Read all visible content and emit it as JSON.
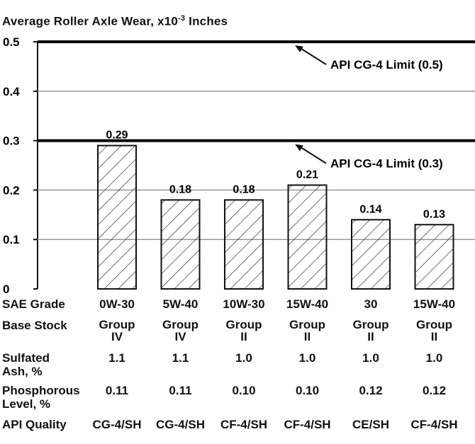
{
  "chart_data": {
    "type": "bar",
    "title": "Average Roller Axle Wear, x10",
    "title_exponent": "-3",
    "title_unit": "Inches",
    "ylim": [
      0,
      0.5
    ],
    "yticks": [
      "0",
      "0.1",
      "0.2",
      "0.3",
      "0.4",
      "0.5"
    ],
    "categories": [
      "0W-30",
      "5W-40",
      "10W-30",
      "15W-40",
      "30",
      "15W-40"
    ],
    "values": [
      0.29,
      0.18,
      0.18,
      0.21,
      0.14,
      0.13
    ],
    "data_labels": [
      "0.29",
      "0.18",
      "0.18",
      "0.21",
      "0.14",
      "0.13"
    ],
    "annotations": [
      {
        "text": "API CG-4 Limit (0.5)",
        "y": 0.5
      },
      {
        "text": "API CG-4 Limit (0.3)",
        "y": 0.3
      }
    ],
    "gridlines": true,
    "bar_pattern": "diagonal-hatch"
  },
  "table": {
    "rows": [
      {
        "label": "SAE Grade",
        "cells": [
          "0W-30",
          "5W-40",
          "10W-30",
          "15W-40",
          "30",
          "15W-40"
        ]
      },
      {
        "label": "Base Stock",
        "cells_line1": [
          "Group",
          "Group",
          "Group",
          "Group",
          "Group",
          "Group"
        ],
        "cells_line2": [
          "IV",
          "IV",
          "II",
          "II",
          "II",
          "II"
        ]
      },
      {
        "label_line1": "Sulfated",
        "label_line2": "Ash, %",
        "cells": [
          "1.1",
          "1.1",
          "1.0",
          "1.0",
          "1.0",
          "1.0"
        ]
      },
      {
        "label_line1": "Phosphorous",
        "label_line2": "Level, %",
        "cells": [
          "0.11",
          "0.11",
          "0.10",
          "0.10",
          "0.12",
          "0.12"
        ]
      },
      {
        "label": "API Quality",
        "cells": [
          "CG-4/SH",
          "CG-4/SH",
          "CF-4/SH",
          "CF-4/SH",
          "CE/SH",
          "CF-4/SH"
        ]
      }
    ]
  }
}
